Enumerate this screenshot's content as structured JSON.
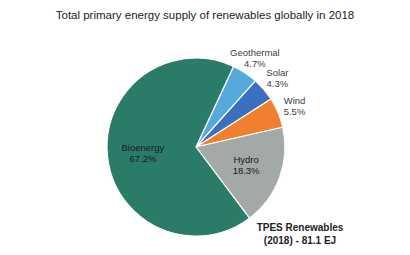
{
  "chart_data": {
    "type": "pie",
    "title": "Total primary energy supply of renewables globally in 2018",
    "categories": [
      "Geothermal",
      "Solar",
      "Wind",
      "Hydro",
      "Bioenergy"
    ],
    "values": [
      4.7,
      4.3,
      5.5,
      18.3,
      67.2
    ],
    "value_labels": [
      "4.7%",
      "4.3%",
      "5.5%",
      "18.3%",
      "67.2%"
    ],
    "colors": [
      "#55a9dd",
      "#3b6fc0",
      "#f07f2e",
      "#a3a9a6",
      "#2b7b69"
    ],
    "data_labels": true,
    "annotations": [
      "TPES Renewables",
      "(2018) - 81.1 EJ"
    ]
  }
}
